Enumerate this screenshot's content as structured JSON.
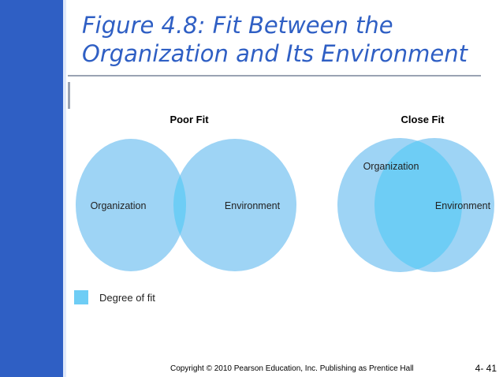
{
  "slide": {
    "title_line1": "Figure 4.8: Fit Between the",
    "title_line2": "Organization and Its Environment",
    "copyright": "Copyright © 2010 Pearson Education, Inc. Publishing as Prentice Hall",
    "slide_number": "4- 41"
  },
  "diagram": {
    "poor_fit": {
      "heading": "Poor Fit",
      "left_label": "Organization",
      "right_label": "Environment"
    },
    "close_fit": {
      "heading": "Close Fit",
      "left_label": "Organization",
      "right_label": "Environment"
    },
    "legend": {
      "label": "Degree of fit"
    },
    "colors": {
      "circle_fill": "#9ed4f5",
      "overlap_fill": "#6ecdf5",
      "accent": "#2f5fc4"
    }
  }
}
